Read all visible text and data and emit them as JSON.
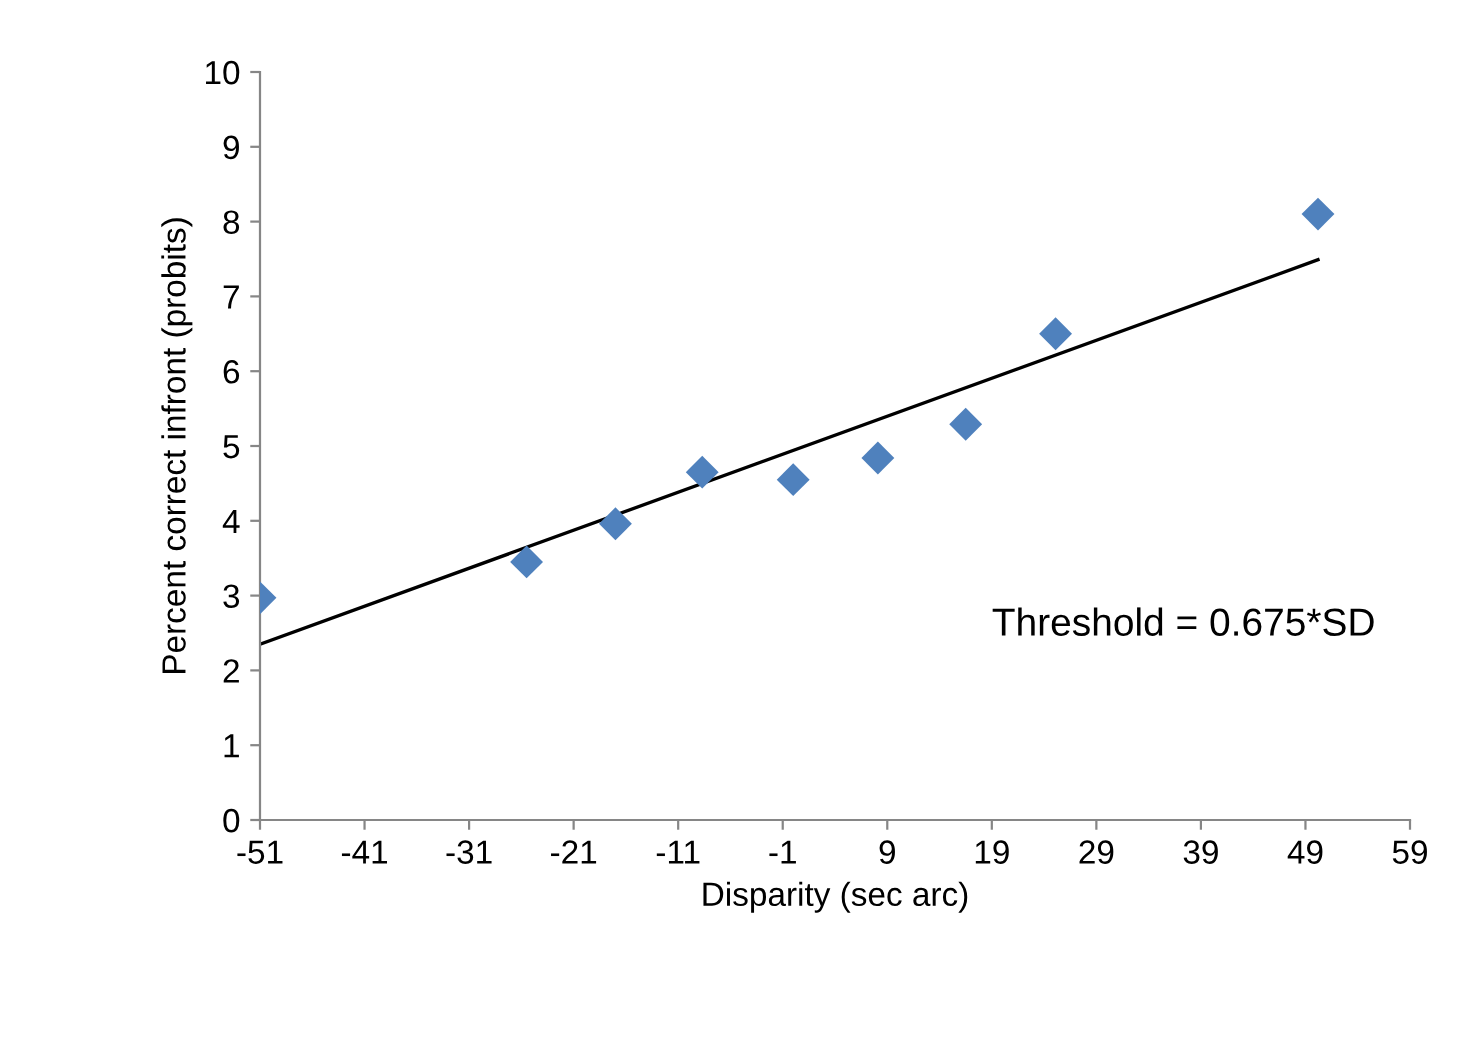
{
  "chart_data": {
    "type": "scatter",
    "xlabel": "Disparity (sec arc)",
    "ylabel": "Percent correct infront (probits)",
    "annotations": [
      "Threshold = 0.675*SD"
    ],
    "series": [
      {
        "color": "#4f81bd",
        "marker": "diamond",
        "x": [
          -51,
          -25.5,
          -17,
          -8.7,
          0,
          8.1,
          16.5,
          25.1,
          50.2
        ],
        "values": [
          2.97,
          3.45,
          3.96,
          4.65,
          4.55,
          4.84,
          5.29,
          6.5,
          8.1
        ]
      },
      {
        "type": "line",
        "color": "#000000",
        "x": [
          -51,
          50.2
        ],
        "values": [
          2.35,
          7.49
        ]
      }
    ],
    "xlim": [
      -51,
      59
    ],
    "xticks": [
      -51,
      -41,
      -31,
      -21,
      -11,
      -1,
      9,
      19,
      29,
      39,
      49,
      59
    ],
    "ylim": [
      0,
      10
    ],
    "yticks": [
      0,
      1,
      2,
      3,
      4,
      5,
      6,
      7,
      8,
      9,
      10
    ],
    "grid": false,
    "legend": false
  }
}
